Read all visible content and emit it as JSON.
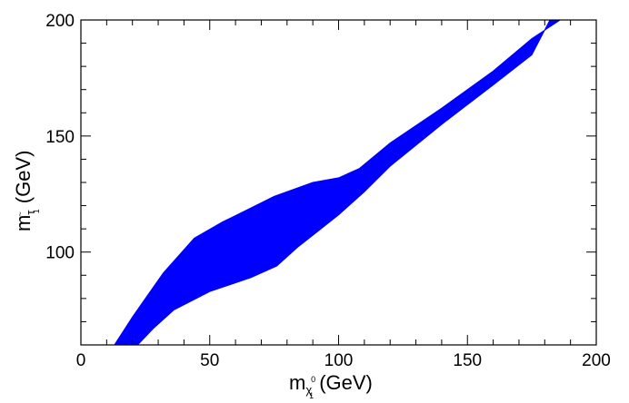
{
  "chart_data": {
    "type": "area",
    "title": "",
    "xlabel": {
      "main": "m",
      "sub": "χ",
      "sub_sub": "1",
      "sup": "0",
      "unit": "(GeV)"
    },
    "ylabel": {
      "main": "m",
      "sub": "τ",
      "sub_sub": "1",
      "sup": "~",
      "unit": "(GeV)"
    },
    "xlim": [
      0,
      200
    ],
    "ylim": [
      60,
      200
    ],
    "x_ticks": [
      "0",
      "50",
      "100",
      "150",
      "200"
    ],
    "y_ticks": [
      "100",
      "150",
      "200"
    ],
    "grid": false,
    "legend": "none",
    "series": [
      {
        "fill_color": "#0000ff",
        "upper": [
          [
            13,
            60
          ],
          [
            20,
            72
          ],
          [
            25,
            80
          ],
          [
            32,
            91
          ],
          [
            44,
            106
          ],
          [
            55,
            113
          ],
          [
            66,
            119
          ],
          [
            75,
            124
          ],
          [
            90,
            130
          ],
          [
            100,
            132
          ],
          [
            108,
            136
          ],
          [
            120,
            147
          ],
          [
            140,
            162
          ],
          [
            160,
            178
          ],
          [
            175,
            192
          ],
          [
            186,
            200
          ]
        ],
        "lower": [
          [
            22,
            60
          ],
          [
            28,
            67
          ],
          [
            36,
            75
          ],
          [
            50,
            83
          ],
          [
            66,
            89
          ],
          [
            76,
            94
          ],
          [
            84,
            102
          ],
          [
            92,
            109
          ],
          [
            100,
            116
          ],
          [
            110,
            126
          ],
          [
            120,
            137
          ],
          [
            140,
            155
          ],
          [
            160,
            172
          ],
          [
            175,
            185
          ],
          [
            182,
            200
          ]
        ]
      }
    ]
  }
}
